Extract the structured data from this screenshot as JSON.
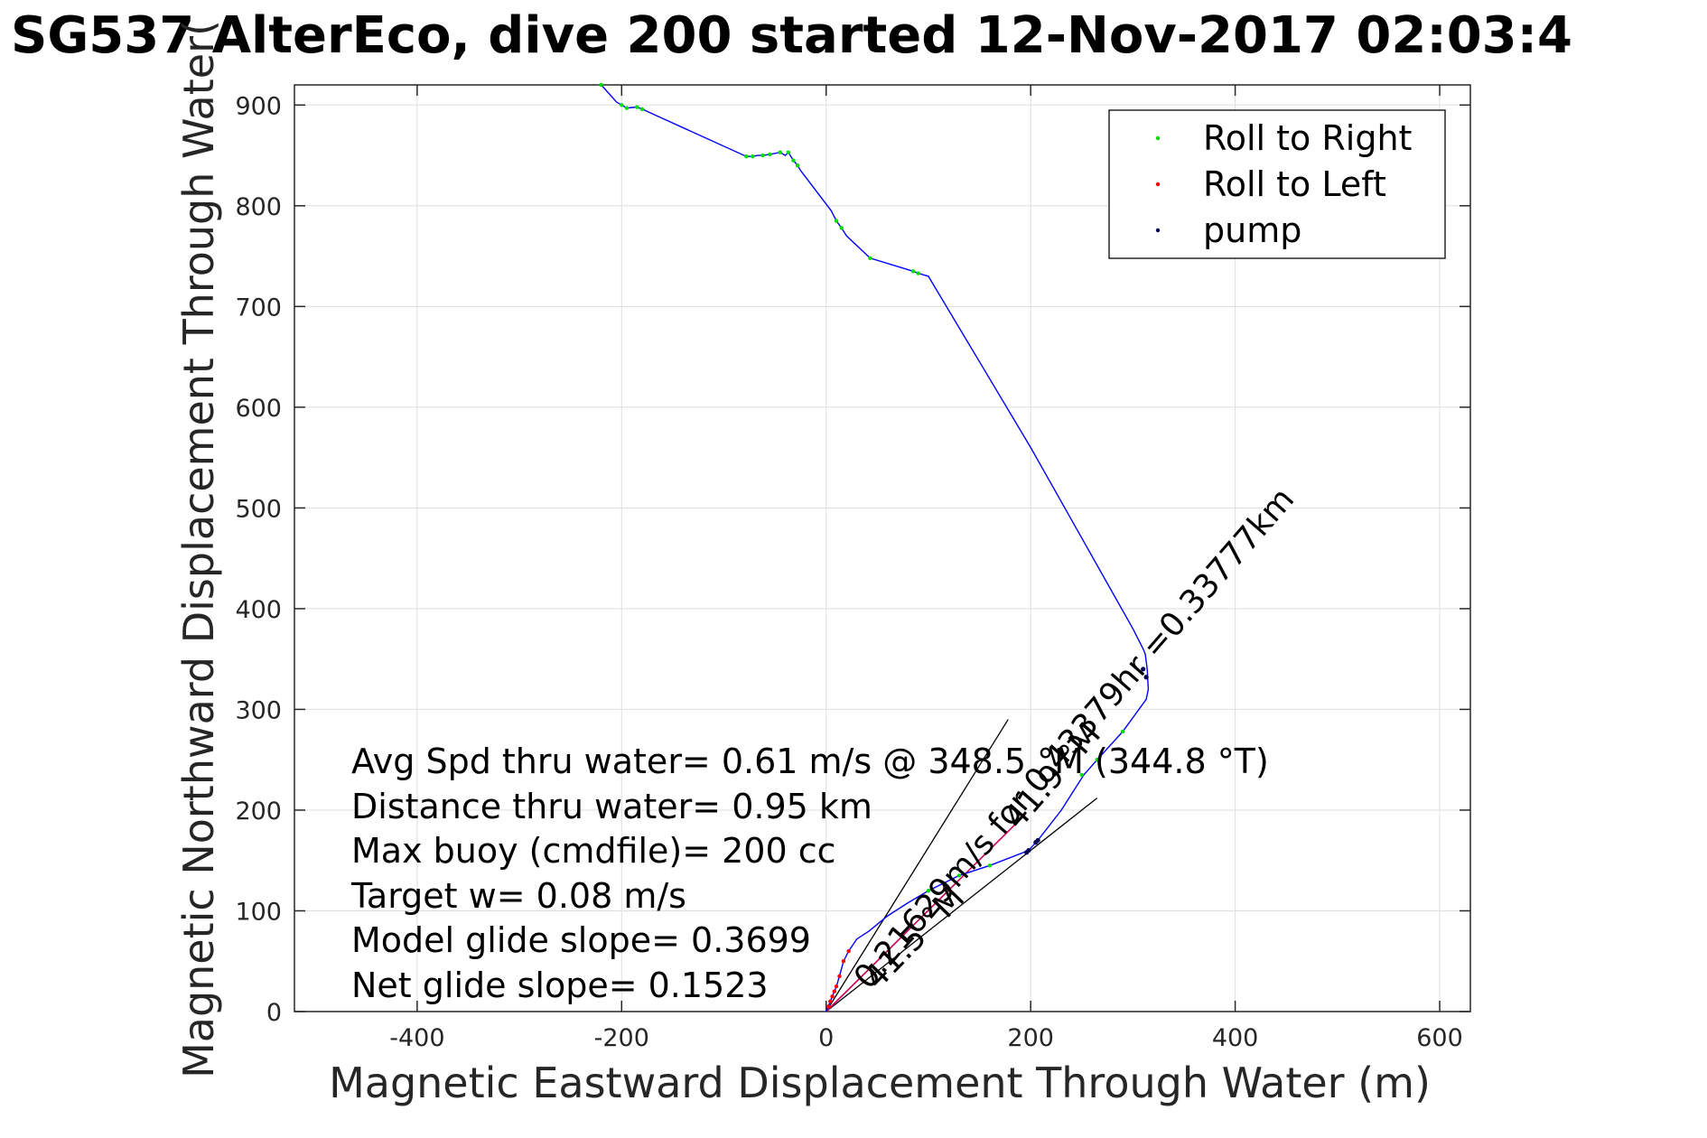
{
  "figure": {
    "title": "SG537 AlterEco, dive 200 started 12-Nov-2017 02:03:4"
  },
  "chart_data": {
    "type": "scatter",
    "title": "SG537 AlterEco, dive 200 started 12-Nov-2017 02:03:4",
    "xlabel": "Magnetic Eastward Displacement Through Water (m)",
    "ylabel": "Magnetic Northward Displacement Through Water(",
    "xlim": [
      -520,
      630
    ],
    "ylim": [
      0,
      920
    ],
    "xticks": [
      -400,
      -200,
      0,
      200,
      400,
      600
    ],
    "xtick_labels": [
      "-400",
      "-200",
      "0",
      "200",
      "400",
      "600"
    ],
    "yticks": [
      0,
      100,
      200,
      300,
      400,
      500,
      600,
      700,
      800,
      900
    ],
    "ytick_labels": [
      "0",
      "100",
      "200",
      "300",
      "400",
      "500",
      "600",
      "700",
      "800",
      "900"
    ],
    "grid": true,
    "legend": {
      "placement": "top-right",
      "entries": [
        "Roll to Right",
        "Roll to Left",
        "pump"
      ]
    },
    "colors": {
      "track": "#0000ff",
      "roll_right": "#00dd00",
      "roll_left": "#ff0000",
      "pump": "#00004d",
      "current_track": "#cc0055",
      "annotation_lines": "#000000",
      "grid": "#dedede"
    },
    "series": [
      {
        "kind": "line",
        "x": [
          0,
          2,
          4,
          6,
          8,
          10,
          13,
          17,
          22,
          30,
          42,
          60,
          80,
          100,
          130,
          160,
          198,
          207,
          230,
          252,
          265,
          290,
          313,
          315,
          314,
          312,
          310,
          300,
          250,
          200,
          150,
          100,
          90,
          85,
          43,
          20,
          15,
          10,
          5,
          -25,
          -28,
          -32,
          -37,
          -40,
          -45,
          -55,
          -62,
          -67,
          -72,
          -78,
          -180,
          -185,
          -195,
          -200,
          -205,
          -220
        ],
        "y": [
          0,
          5,
          10,
          15,
          20,
          25,
          35,
          50,
          60,
          72,
          80,
          95,
          108,
          120,
          135,
          145,
          160,
          170,
          200,
          235,
          250,
          278,
          310,
          320,
          340,
          355,
          360,
          380,
          470,
          560,
          645,
          730,
          733,
          735,
          748,
          770,
          778,
          785,
          795,
          835,
          840,
          845,
          853,
          850,
          853,
          851,
          850,
          850,
          849,
          849,
          896,
          898,
          897,
          900,
          903,
          920
        ]
      },
      {
        "name": "Roll to Right",
        "kind": "points",
        "x": [
          100,
          130,
          160,
          250,
          265,
          290,
          -220,
          -200,
          -195,
          -185,
          -180,
          -78,
          -72,
          -62,
          -55,
          -45,
          -37,
          -32,
          -28,
          10,
          15,
          43,
          85,
          90
        ],
        "y": [
          120,
          135,
          145,
          235,
          250,
          278,
          920,
          900,
          897,
          898,
          896,
          849,
          849,
          850,
          851,
          853,
          853,
          845,
          840,
          785,
          778,
          748,
          735,
          733
        ]
      },
      {
        "name": "Roll to Left",
        "kind": "points",
        "x": [
          2,
          4,
          6,
          8,
          10,
          13,
          17,
          22
        ],
        "y": [
          5,
          10,
          15,
          20,
          25,
          35,
          50,
          60
        ]
      },
      {
        "name": "pump",
        "kind": "points",
        "x": [
          196,
          198,
          205,
          207,
          310,
          313
        ],
        "y": [
          158,
          160,
          168,
          170,
          340,
          332
        ]
      }
    ],
    "annotations": {
      "stats_lines": [
        "Avg Spd thru water=  0.61 m/s @ 348.5 °M (344.8 °T)",
        "Distance thru water=  0.95 km",
        "Max buoy (cmdfile)= 200 cc",
        "Target w= 0.08 m/s",
        "Model glide slope= 0.3699",
        "Net glide slope= 0.1523"
      ],
      "current_label": "0.21629m/s for 0.43379hr =0.33777km",
      "heading_label_upper": "41.9 °M",
      "heading_label_lower": "41.5 °M"
    }
  }
}
